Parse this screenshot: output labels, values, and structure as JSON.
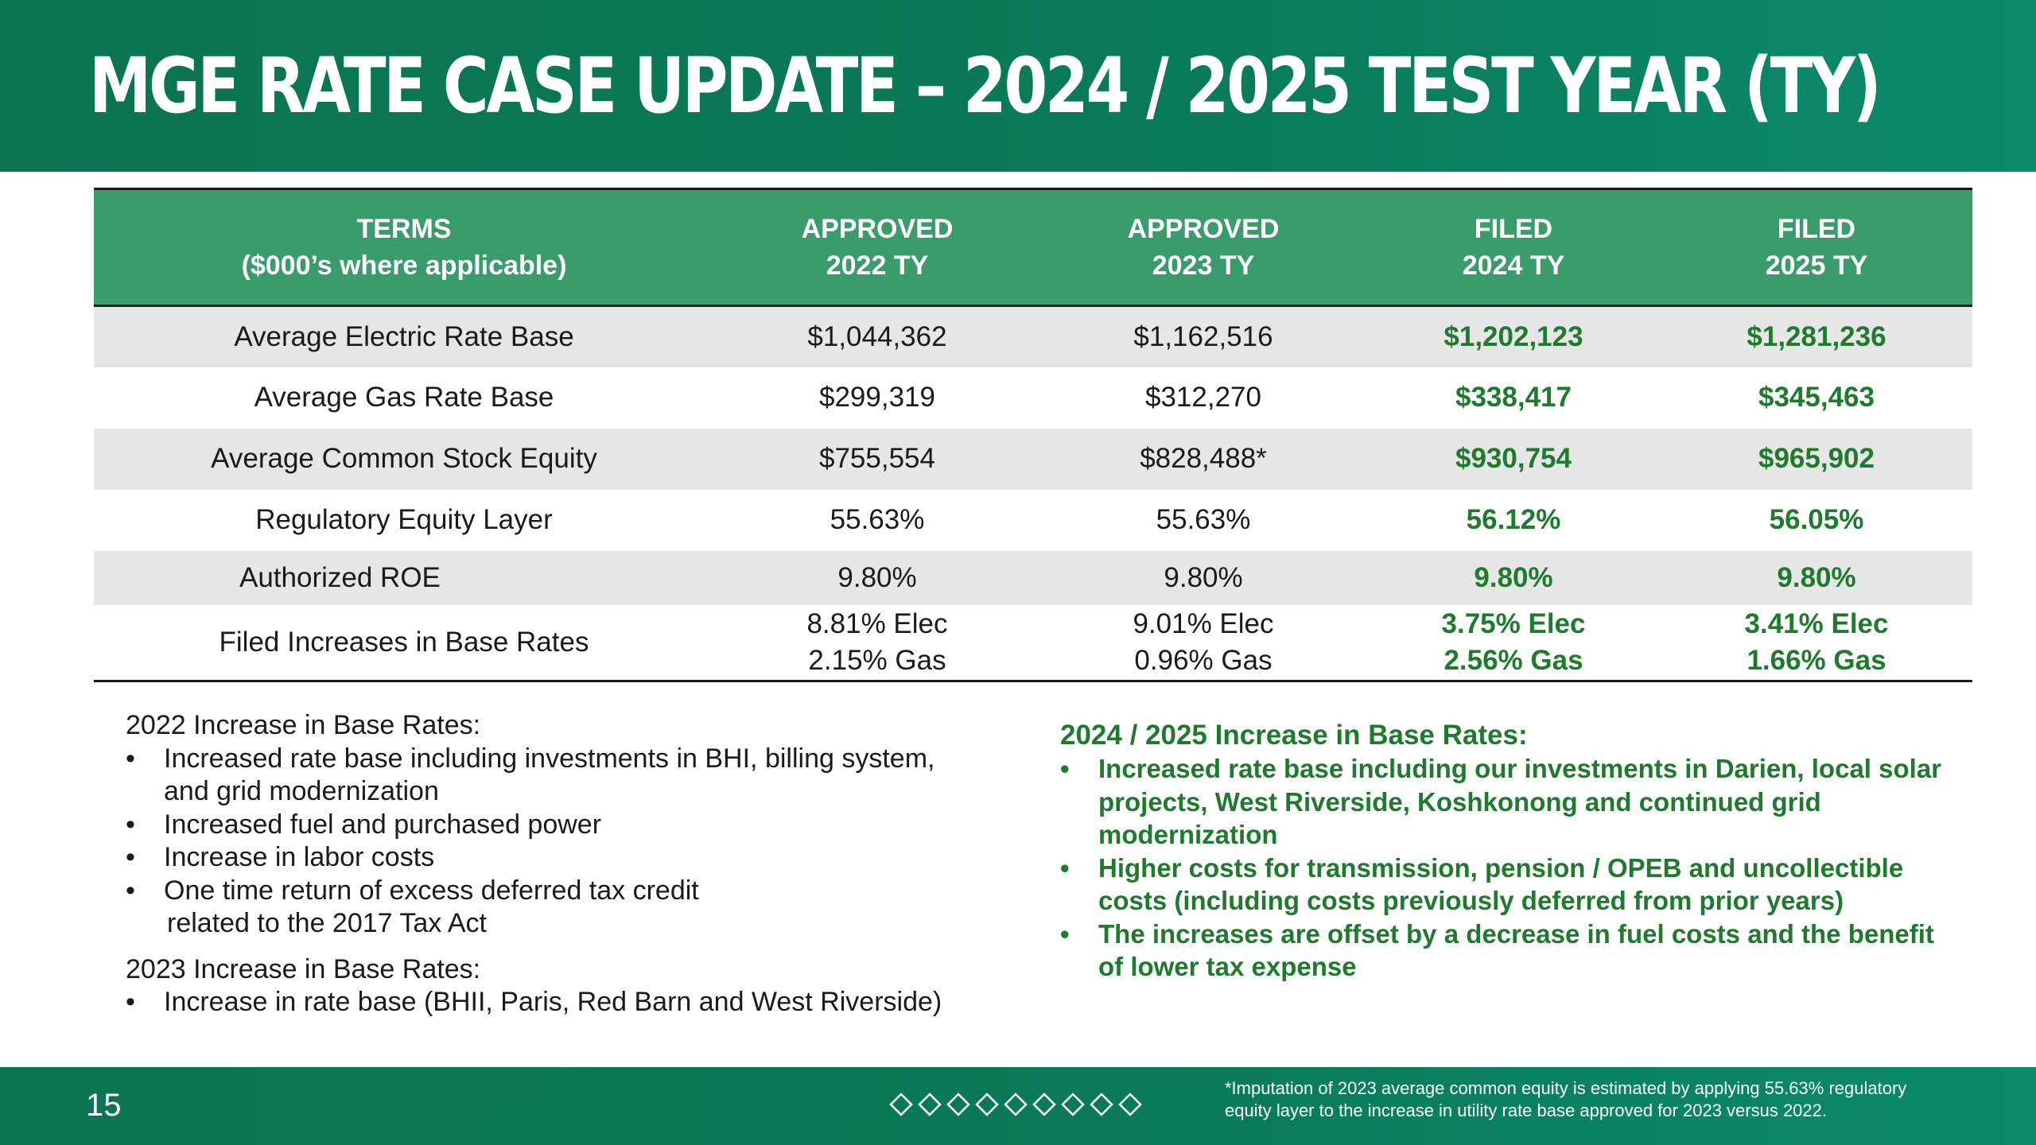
{
  "slide": {
    "title": "MGE RATE CASE UPDATE – 2024 / 2025 TEST YEAR (TY)",
    "page_number": "15"
  },
  "colors": {
    "header_green": "#0b7451",
    "table_header_green": "#3a9c6a",
    "filed_text_green": "#1e7a2c",
    "row_shade": "#e6e6e6"
  },
  "table": {
    "headers": [
      [
        "TERMS",
        "($000’s where applicable)"
      ],
      [
        "APPROVED",
        "2022 TY"
      ],
      [
        "APPROVED",
        "2023 TY"
      ],
      [
        "FILED",
        "2024 TY"
      ],
      [
        "FILED",
        "2025 TY"
      ]
    ],
    "rows": [
      [
        "Average Electric Rate Base",
        "$1,044,362",
        "$1,162,516",
        "$1,202,123",
        "$1,281,236"
      ],
      [
        "Average Gas Rate Base",
        "$299,319",
        "$312,270",
        "$338,417",
        "$345,463"
      ],
      [
        "Average Common Stock Equity",
        "$755,554",
        "$828,488*",
        "$930,754",
        "$965,902"
      ],
      [
        "Regulatory Equity Layer",
        "55.63%",
        "55.63%",
        "56.12%",
        "56.05%"
      ],
      [
        "Authorized ROE",
        "9.80%",
        "9.80%",
        "9.80%",
        "9.80%"
      ]
    ],
    "increase_row": {
      "label": "Filed Increases in Base Rates",
      "values": [
        [
          "8.81% Elec",
          "2.15%  Gas"
        ],
        [
          "9.01% Elec",
          "0.96%  Gas"
        ],
        [
          "3.75% Elec",
          "2.56% Gas"
        ],
        [
          "3.41% Elec",
          "1.66% Gas"
        ]
      ]
    }
  },
  "notes_left": {
    "heading_2022": "2022 Increase in Base Rates:",
    "bullets_2022": [
      [
        "Increased rate base including investments in BHI, billing system,",
        "and grid modernization"
      ],
      [
        "Increased fuel and purchased power"
      ],
      [
        "Increase in labor costs"
      ],
      [
        "One time return of excess deferred tax credit",
        "related to the 2017 Tax Act"
      ]
    ],
    "heading_2023": "2023 Increase in Base Rates:",
    "bullets_2023": [
      [
        "Increase in rate base (BHII, Paris, Red Barn and West Riverside)"
      ]
    ]
  },
  "notes_right": {
    "heading": "2024 / 2025 Increase in Base Rates:",
    "bullets": [
      [
        "Increased rate base including our investments in Darien, local solar",
        "projects, West Riverside, Koshkonong and continued grid",
        "modernization"
      ],
      [
        "Higher costs for transmission, pension / OPEB and uncollectible",
        "costs (including costs previously deferred from prior years)"
      ],
      [
        "The increases are offset by a decrease in fuel costs and the benefit",
        "of lower tax expense"
      ]
    ]
  },
  "footnote": [
    "*Imputation of 2023 average common equity is estimated by applying 55.63% regulatory",
    "equity layer to the increase in utility rate base approved for 2023 versus 2022."
  ],
  "decoration": {
    "diamond_icon": "diamond-outline-icon",
    "diamond_count": 9
  }
}
